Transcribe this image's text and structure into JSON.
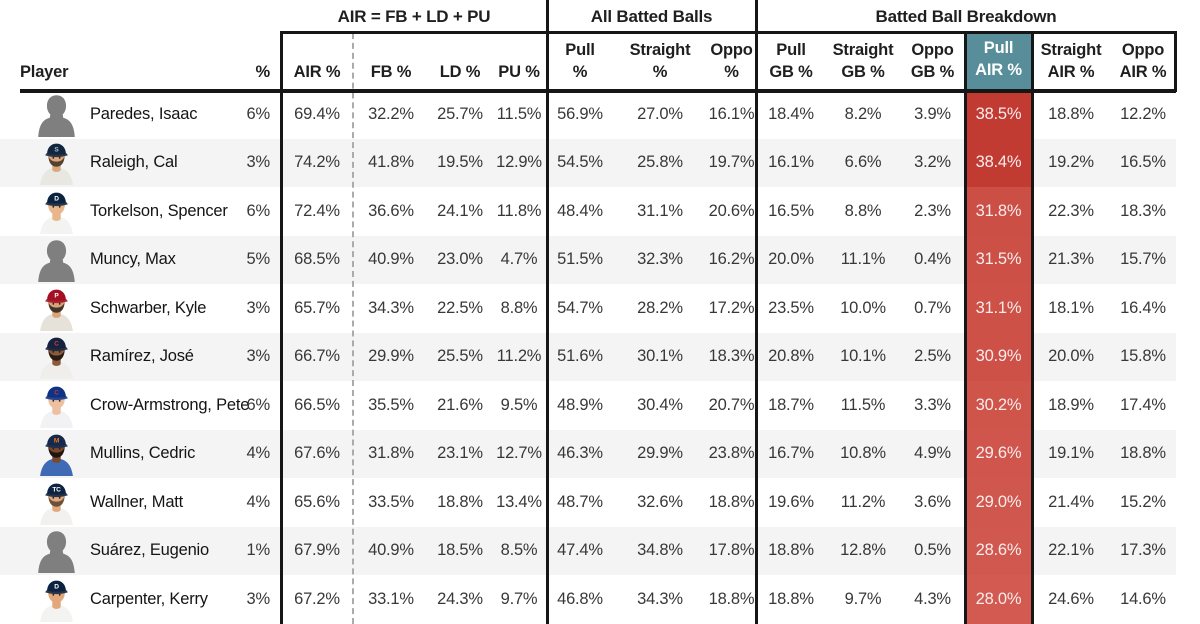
{
  "colors": {
    "teal": "#578e9a",
    "red_high": "#c23b33",
    "red_low": "#d25a50",
    "red_text": "#f8ecec",
    "stripe": "#f4f4f4",
    "border": "#161616",
    "dash": "#ababab",
    "silhouette": "#7f7f7f"
  },
  "groups": {
    "air_formula": "AIR = FB + LD + PU",
    "all_batted": "All Batted Balls",
    "breakdown": "Batted Ball Breakdown"
  },
  "header": {
    "player": "Player",
    "cols": [
      {
        "key": "pct",
        "l1": "",
        "l2": "%"
      },
      {
        "key": "air",
        "l1": "",
        "l2": "AIR %"
      },
      {
        "key": "fb",
        "l1": "",
        "l2": "FB %"
      },
      {
        "key": "ld",
        "l1": "",
        "l2": "LD %"
      },
      {
        "key": "pu",
        "l1": "",
        "l2": "PU %"
      },
      {
        "key": "pull",
        "l1": "Pull",
        "l2": "%"
      },
      {
        "key": "straight",
        "l1": "Straight",
        "l2": "%"
      },
      {
        "key": "oppo",
        "l1": "Oppo",
        "l2": "%"
      },
      {
        "key": "pull_gb",
        "l1": "Pull",
        "l2": "GB %"
      },
      {
        "key": "straight_gb",
        "l1": "Straight",
        "l2": "GB %"
      },
      {
        "key": "oppo_gb",
        "l1": "Oppo",
        "l2": "GB %"
      },
      {
        "key": "pull_air",
        "l1": "Pull",
        "l2": "AIR %"
      },
      {
        "key": "straight_air",
        "l1": "Straight",
        "l2": "AIR %"
      },
      {
        "key": "oppo_air",
        "l1": "Oppo",
        "l2": "AIR %"
      }
    ],
    "pull_air_range": {
      "min": 28.0,
      "max": 38.5
    }
  },
  "table": {
    "rows": [
      {
        "name": "Paredes, Isaac",
        "pct": "6%",
        "air": "69.4%",
        "fb": "32.2%",
        "ld": "25.7%",
        "pu": "11.5%",
        "pull": "56.9%",
        "straight": "27.0%",
        "oppo": "16.1%",
        "pull_gb": "18.4%",
        "straight_gb": "8.2%",
        "oppo_gb": "3.9%",
        "pull_air": "38.5%",
        "straight_air": "18.8%",
        "oppo_air": "12.2%",
        "avatar": {
          "style": "silhouette"
        }
      },
      {
        "name": "Raleigh, Cal",
        "pct": "3%",
        "air": "74.2%",
        "fb": "41.8%",
        "ld": "19.5%",
        "pu": "12.9%",
        "pull": "54.5%",
        "straight": "25.8%",
        "oppo": "19.7%",
        "pull_gb": "16.1%",
        "straight_gb": "6.6%",
        "oppo_gb": "3.2%",
        "pull_air": "38.4%",
        "straight_air": "19.2%",
        "oppo_air": "16.5%",
        "avatar": {
          "style": "photo",
          "cap": "#12263f",
          "skin": "#dba67c",
          "beard": "#55412f",
          "jersey": "#e9e7e2",
          "logo": "#9fc5c8",
          "logo_text": "S"
        }
      },
      {
        "name": "Torkelson, Spencer",
        "pct": "6%",
        "air": "72.4%",
        "fb": "36.6%",
        "ld": "24.1%",
        "pu": "11.8%",
        "pull": "48.4%",
        "straight": "31.1%",
        "oppo": "20.6%",
        "pull_gb": "16.5%",
        "straight_gb": "8.8%",
        "oppo_gb": "2.3%",
        "pull_air": "31.8%",
        "straight_air": "22.3%",
        "oppo_air": "18.3%",
        "avatar": {
          "style": "photo",
          "cap": "#0c2340",
          "skin": "#e9b68c",
          "beard": null,
          "jersey": "#f3f3f1",
          "logo": "#ffffff",
          "logo_text": "D"
        }
      },
      {
        "name": "Muncy, Max",
        "pct": "5%",
        "air": "68.5%",
        "fb": "40.9%",
        "ld": "23.0%",
        "pu": "4.7%",
        "pull": "51.5%",
        "straight": "32.3%",
        "oppo": "16.2%",
        "pull_gb": "20.0%",
        "straight_gb": "11.1%",
        "oppo_gb": "0.4%",
        "pull_air": "31.5%",
        "straight_air": "21.3%",
        "oppo_air": "15.7%",
        "avatar": {
          "style": "silhouette"
        }
      },
      {
        "name": "Schwarber, Kyle",
        "pct": "3%",
        "air": "65.7%",
        "fb": "34.3%",
        "ld": "22.5%",
        "pu": "8.8%",
        "pull": "54.7%",
        "straight": "28.2%",
        "oppo": "17.2%",
        "pull_gb": "23.5%",
        "straight_gb": "10.0%",
        "oppo_gb": "0.7%",
        "pull_air": "31.1%",
        "straight_air": "18.1%",
        "oppo_air": "16.4%",
        "avatar": {
          "style": "photo",
          "cap": "#a50f23",
          "skin": "#d8a47a",
          "beard": "#453526",
          "jersey": "#e6e2da",
          "logo": "#ffffff",
          "logo_text": "P"
        }
      },
      {
        "name": "Ramírez, José",
        "pct": "3%",
        "air": "66.7%",
        "fb": "29.9%",
        "ld": "25.5%",
        "pu": "11.2%",
        "pull": "51.6%",
        "straight": "30.1%",
        "oppo": "18.3%",
        "pull_gb": "20.8%",
        "straight_gb": "10.1%",
        "oppo_gb": "2.5%",
        "pull_air": "30.9%",
        "straight_air": "20.0%",
        "oppo_air": "15.8%",
        "avatar": {
          "style": "photo",
          "cap": "#14233f",
          "skin": "#8a5a3b",
          "beard": "#2a1c12",
          "jersey": "#f0eeea",
          "logo": "#d8373c",
          "logo_text": "C"
        }
      },
      {
        "name": "Crow-Armstrong, Pete",
        "pct": "6%",
        "air": "66.5%",
        "fb": "35.5%",
        "ld": "21.6%",
        "pu": "9.5%",
        "pull": "48.9%",
        "straight": "30.4%",
        "oppo": "20.7%",
        "pull_gb": "18.7%",
        "straight_gb": "11.5%",
        "oppo_gb": "3.3%",
        "pull_air": "30.2%",
        "straight_air": "18.9%",
        "oppo_air": "17.4%",
        "avatar": {
          "style": "photo",
          "cap": "#0e3386",
          "skin": "#ecc0a0",
          "beard": null,
          "jersey": "#f2f2f4",
          "logo": "#cc3433",
          "logo_text": "C"
        }
      },
      {
        "name": "Mullins, Cedric",
        "pct": "4%",
        "air": "67.6%",
        "fb": "31.8%",
        "ld": "23.1%",
        "pu": "12.7%",
        "pull": "46.3%",
        "straight": "29.9%",
        "oppo": "23.8%",
        "pull_gb": "16.7%",
        "straight_gb": "10.8%",
        "oppo_gb": "4.9%",
        "pull_air": "29.6%",
        "straight_air": "19.1%",
        "oppo_air": "18.8%",
        "avatar": {
          "style": "photo",
          "cap": "#15294d",
          "skin": "#7b4a2d",
          "beard": "#201510",
          "jersey": "#3f6ab5",
          "logo": "#e87722",
          "logo_text": "M"
        }
      },
      {
        "name": "Wallner, Matt",
        "pct": "4%",
        "air": "65.6%",
        "fb": "33.5%",
        "ld": "18.8%",
        "pu": "13.4%",
        "pull": "48.7%",
        "straight": "32.6%",
        "oppo": "18.8%",
        "pull_gb": "19.6%",
        "straight_gb": "11.2%",
        "oppo_gb": "3.6%",
        "pull_air": "29.0%",
        "straight_air": "21.4%",
        "oppo_air": "15.2%",
        "avatar": {
          "style": "photo",
          "cap": "#0c2341",
          "skin": "#e2a87e",
          "beard": "#6b5138",
          "jersey": "#f2f1ef",
          "logo": "#ffffff",
          "logo_text": "TC"
        }
      },
      {
        "name": "Suárez, Eugenio",
        "pct": "1%",
        "air": "67.9%",
        "fb": "40.9%",
        "ld": "18.5%",
        "pu": "8.5%",
        "pull": "47.4%",
        "straight": "34.8%",
        "oppo": "17.8%",
        "pull_gb": "18.8%",
        "straight_gb": "12.8%",
        "oppo_gb": "0.5%",
        "pull_air": "28.6%",
        "straight_air": "22.1%",
        "oppo_air": "17.3%",
        "avatar": {
          "style": "silhouette"
        }
      },
      {
        "name": "Carpenter, Kerry",
        "pct": "3%",
        "air": "67.2%",
        "fb": "33.1%",
        "ld": "24.3%",
        "pu": "9.7%",
        "pull": "46.8%",
        "straight": "34.3%",
        "oppo": "18.8%",
        "pull_gb": "18.8%",
        "straight_gb": "9.7%",
        "oppo_gb": "4.3%",
        "pull_air": "28.0%",
        "straight_air": "24.6%",
        "oppo_air": "14.6%",
        "avatar": {
          "style": "photo",
          "cap": "#0c2340",
          "skin": "#e2a87c",
          "beard": null,
          "jersey": "#f3f3f1",
          "logo": "#ffffff",
          "logo_text": "D"
        }
      }
    ]
  }
}
